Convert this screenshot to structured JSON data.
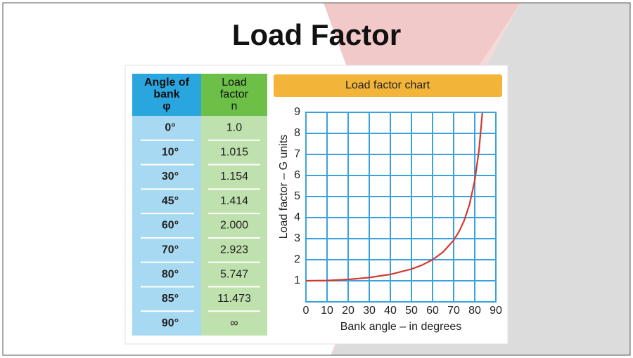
{
  "title": "Load Factor",
  "table": {
    "header": [
      [
        "Angle of",
        "bank",
        "φ"
      ],
      [
        "Load",
        "factor",
        "n"
      ]
    ],
    "rows": [
      [
        "0°",
        "1.0"
      ],
      [
        "10°",
        "1.015"
      ],
      [
        "30°",
        "1.154"
      ],
      [
        "45°",
        "1.414"
      ],
      [
        "60°",
        "2.000"
      ],
      [
        "70°",
        "2.923"
      ],
      [
        "80°",
        "5.747"
      ],
      [
        "85°",
        "11.473"
      ],
      [
        "90°",
        "∞"
      ]
    ]
  },
  "chart_data": {
    "type": "line",
    "title": "Load factor chart",
    "x_label": "Bank angle – in degrees",
    "y_label": "Load factor – G units",
    "x": [
      0,
      10,
      20,
      30,
      40,
      50,
      55,
      60,
      65,
      70,
      72.5,
      75,
      77.5,
      80,
      82,
      83.6
    ],
    "values": [
      1,
      1.015,
      1.064,
      1.155,
      1.305,
      1.556,
      1.743,
      2.0,
      2.366,
      2.924,
      3.326,
      3.864,
      4.62,
      5.759,
      7.185,
      8.97
    ],
    "color": "#d23a32",
    "xlim": [
      0,
      90
    ],
    "ylim": [
      0,
      9
    ],
    "xticks": [
      0,
      10,
      20,
      30,
      40,
      50,
      60,
      70,
      80,
      90
    ],
    "yticks": [
      1,
      2,
      3,
      4,
      5,
      6,
      7,
      8,
      9
    ],
    "grid": true
  }
}
